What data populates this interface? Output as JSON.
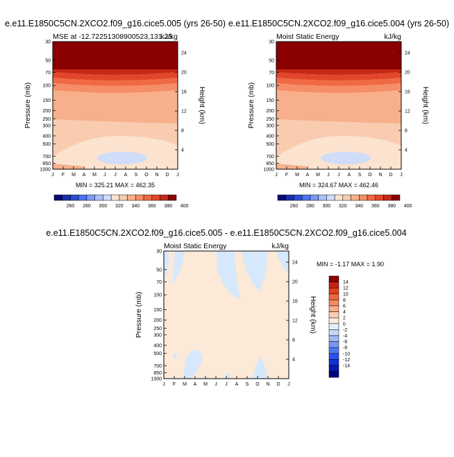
{
  "colors": {
    "mse_levels": [
      "#0a0a72",
      "#1a2ea8",
      "#2a4ed6",
      "#4f74f0",
      "#7d99f5",
      "#a9bff7",
      "#cfdcfa",
      "#fbe3d0",
      "#f9ccb0",
      "#f7b08b",
      "#f58d66",
      "#f06a45",
      "#e2462a",
      "#c52a18",
      "#8b0000"
    ],
    "diff_neg": "#d6e8fb",
    "diff_pos": "#fde9d7",
    "diff_levels": [
      "#000080",
      "#0818b0",
      "#1030d8",
      "#2850f0",
      "#5078f0",
      "#7898f0",
      "#a0b8f0",
      "#c8d8f8",
      "#e6eefb",
      "#fde9d7",
      "#fbcdb0",
      "#f8ad88",
      "#f58a62",
      "#ee6640",
      "#e0401f",
      "#c42414",
      "#8b0000"
    ]
  },
  "panels": {
    "p1": {
      "title": "e.e11.E1850C5CN.2XCO2.f09_g16.cice5.005 (yrs 26-50)",
      "subtitle_left": "MSE at -12.72251308900523,131.25",
      "subtitle_right": "kJ/kg",
      "minmax": "MIN = 325.21 MAX = 462.35"
    },
    "p2": {
      "title": "e.e11.E1850C5CN.2XCO2.f09_g16.cice5.004 (yrs 26-50)",
      "subtitle_left": "Moist Static Energy",
      "subtitle_right": "kJ/kg",
      "minmax": "MIN = 324.67 MAX = 462.46"
    },
    "p3": {
      "title": "e.e11.E1850C5CN.2XCO2.f09_g16.cice5.005 - e.e11.E1850C5CN.2XCO2.f09_g16.cice5.004",
      "subtitle_left": "Moist Static Energy",
      "subtitle_right": "kJ/kg",
      "minmax": "MIN =  -1.17 MAX =   1.90"
    }
  },
  "axis_labels": {
    "pressure": "Pressure (mb)",
    "height": "Height (km)"
  },
  "pressure_ticks": [
    "30",
    "50",
    "70",
    "100",
    "150",
    "200",
    "250",
    "300",
    "400",
    "500",
    "700",
    "850",
    "1000"
  ],
  "height_ticks": [
    "24",
    "20",
    "16",
    "12",
    "8",
    "4"
  ],
  "month_ticks": [
    "J",
    "F",
    "M",
    "A",
    "M",
    "J",
    "J",
    "A",
    "S",
    "O",
    "N",
    "D",
    "J"
  ],
  "mse_colorbar_labels": [
    "260",
    "280",
    "300",
    "320",
    "340",
    "360",
    "380",
    "400"
  ],
  "diff_colorbar_labels": [
    "14",
    "12",
    "10",
    "8",
    "6",
    "4",
    "2",
    "0",
    "-2",
    "-4",
    "-6",
    "-8",
    "-10",
    "-12",
    "-14"
  ],
  "chart_data": [
    {
      "type": "heatmap",
      "title": "e.e11.E1850C5CN.2XCO2.f09_g16.cice5.005 (yrs 26-50)",
      "variable": "MSE at -12.72251308900523,131.25",
      "units": "kJ/kg",
      "xlabel": "",
      "ylabel": "Pressure (mb)",
      "ylabel_right": "Height (km)",
      "x_categories": [
        "J",
        "F",
        "M",
        "A",
        "M",
        "J",
        "J",
        "A",
        "S",
        "O",
        "N",
        "D",
        "J"
      ],
      "y_pressure_mb": [
        30,
        50,
        70,
        100,
        150,
        200,
        250,
        300,
        400,
        500,
        700,
        850,
        1000
      ],
      "contour_levels": [
        250,
        260,
        270,
        280,
        290,
        300,
        310,
        320,
        330,
        340,
        350,
        360,
        370,
        380,
        390,
        400,
        410
      ],
      "min": 325.21,
      "max": 462.35
    },
    {
      "type": "heatmap",
      "title": "e.e11.E1850C5CN.2XCO2.f09_g16.cice5.004 (yrs 26-50)",
      "variable": "Moist Static Energy",
      "units": "kJ/kg",
      "xlabel": "",
      "ylabel": "Pressure (mb)",
      "ylabel_right": "Height (km)",
      "x_categories": [
        "J",
        "F",
        "M",
        "A",
        "M",
        "J",
        "J",
        "A",
        "S",
        "O",
        "N",
        "D",
        "J"
      ],
      "y_pressure_mb": [
        30,
        50,
        70,
        100,
        150,
        200,
        250,
        300,
        400,
        500,
        700,
        850,
        1000
      ],
      "min": 324.67,
      "max": 462.46
    },
    {
      "type": "heatmap",
      "title": "e.e11.E1850C5CN.2XCO2.f09_g16.cice5.005 - e.e11.E1850C5CN.2XCO2.f09_g16.cice5.004",
      "variable": "Moist Static Energy",
      "units": "kJ/kg",
      "xlabel": "",
      "ylabel": "Pressure (mb)",
      "ylabel_right": "Height (km)",
      "x_categories": [
        "J",
        "F",
        "M",
        "A",
        "M",
        "J",
        "J",
        "A",
        "S",
        "O",
        "N",
        "D",
        "J"
      ],
      "y_pressure_mb": [
        30,
        50,
        70,
        100,
        150,
        200,
        250,
        300,
        400,
        500,
        700,
        850,
        1000
      ],
      "contour_levels": [
        -14,
        -12,
        -10,
        -8,
        -6,
        -4,
        -2,
        0,
        2,
        4,
        6,
        8,
        10,
        12,
        14
      ],
      "min": -1.17,
      "max": 1.9
    }
  ]
}
